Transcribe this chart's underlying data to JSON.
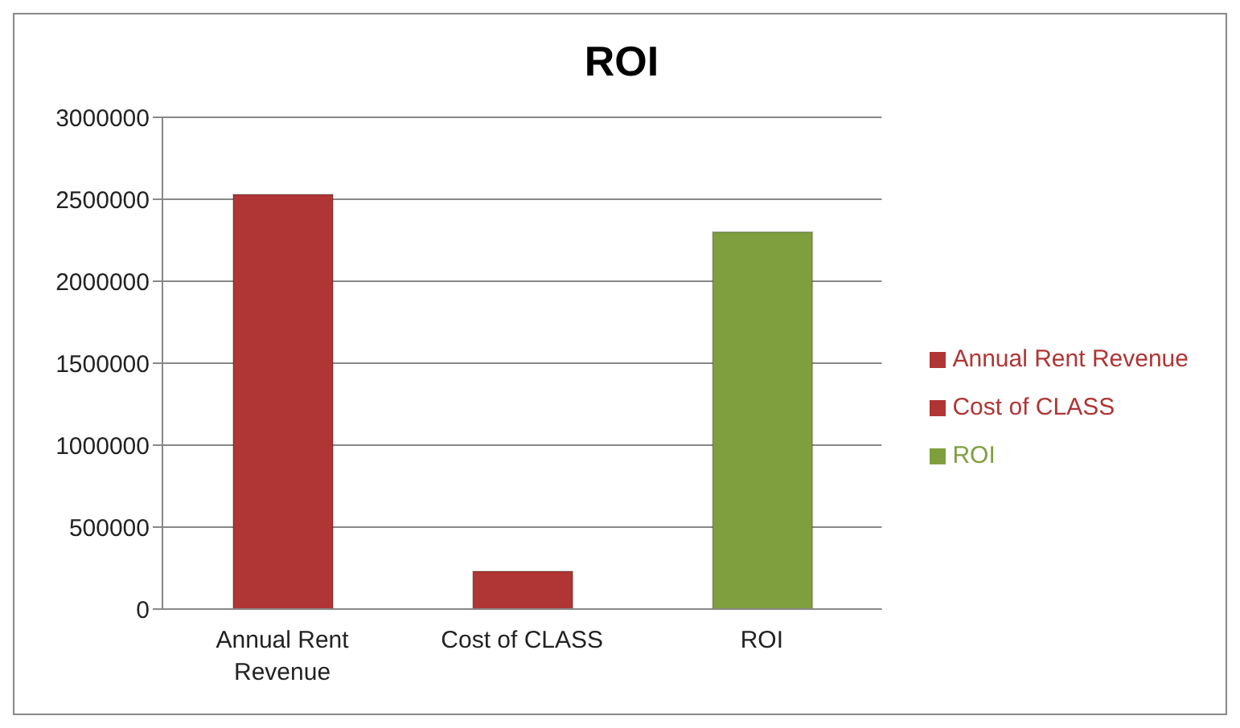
{
  "chart_data": {
    "type": "bar",
    "title": "ROI",
    "categories": [
      "Annual Rent Revenue",
      "Cost of CLASS",
      "ROI"
    ],
    "series": [
      {
        "name": "Annual Rent Revenue",
        "color": "#b03535",
        "values": [
          2530000,
          null,
          null
        ]
      },
      {
        "name": "Cost of CLASS",
        "color": "#b03535",
        "values": [
          null,
          230000,
          null
        ]
      },
      {
        "name": "ROI",
        "color": "#7f9f3f",
        "values": [
          null,
          null,
          2300000
        ]
      }
    ],
    "stacked": true,
    "ylim": [
      0,
      3000000
    ],
    "yticks": [
      0,
      500000,
      1000000,
      1500000,
      2000000,
      2500000,
      3000000
    ],
    "grid": "y",
    "legend": "right"
  }
}
